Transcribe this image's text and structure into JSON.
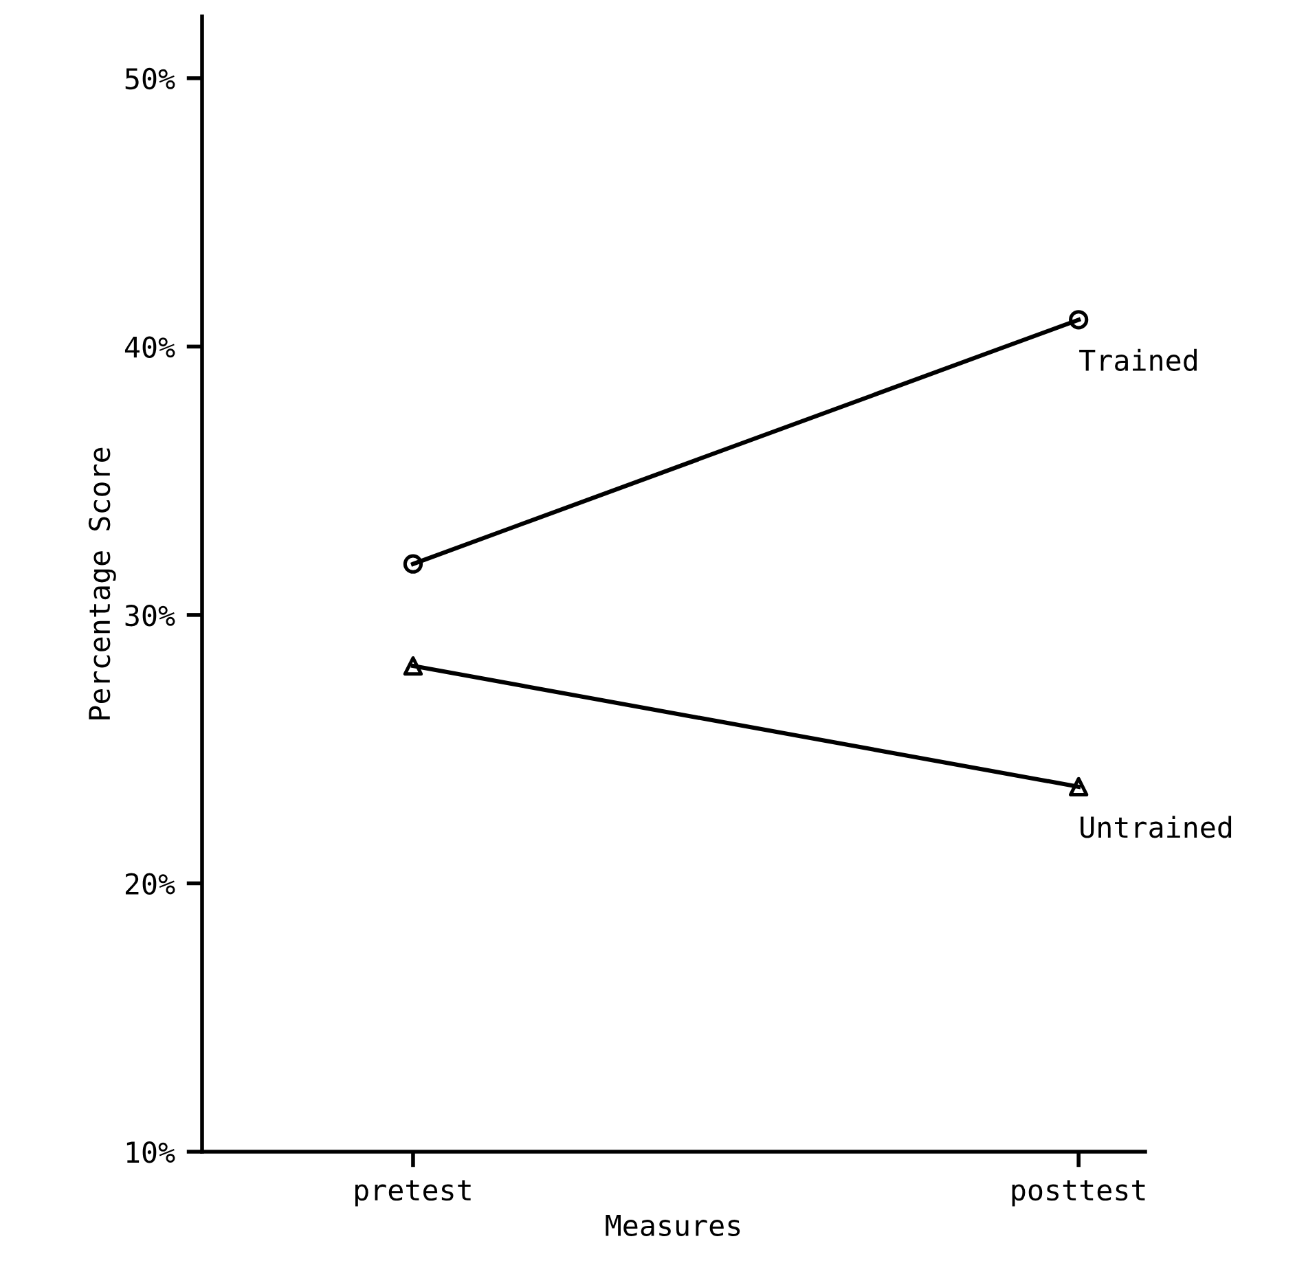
{
  "chart_data": {
    "type": "line",
    "xlabel": "Measures",
    "ylabel": "Percentage Score",
    "categories": [
      "pretest",
      "posttest"
    ],
    "series": [
      {
        "name": "Trained",
        "color": "#000000",
        "marker": "circle",
        "values": [
          31.9,
          41
        ]
      },
      {
        "name": "Untrained",
        "color": "#000000",
        "marker": "triangle",
        "values": [
          28.1,
          23.6
        ]
      }
    ],
    "ylim": [
      10,
      52.3
    ],
    "yticks": [
      {
        "value": 10,
        "label": "10%"
      },
      {
        "value": 20,
        "label": "20%"
      },
      {
        "value": 30,
        "label": "30%"
      },
      {
        "value": 40,
        "label": "40%"
      },
      {
        "value": 50,
        "label": "50%"
      }
    ],
    "grid": false,
    "legend": "right",
    "line_style": "solid"
  }
}
